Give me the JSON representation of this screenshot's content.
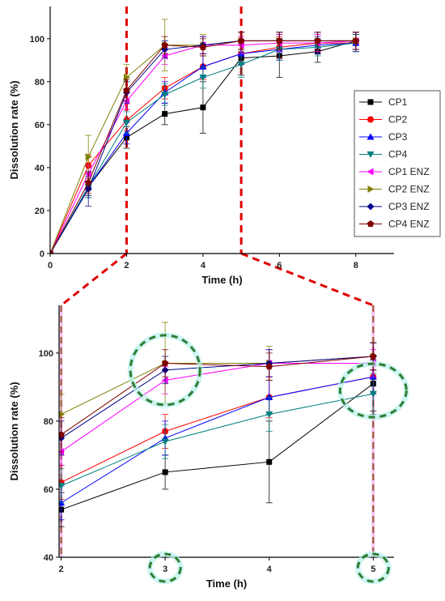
{
  "chart_data": [
    {
      "type": "line",
      "xlabel": "Time (h)",
      "ylabel": "Dissolution rate (%)",
      "xlim": [
        0,
        9
      ],
      "ylim": [
        0,
        115
      ],
      "xticks": [
        0,
        2,
        4,
        6,
        8
      ],
      "yticks": [
        0,
        20,
        40,
        60,
        80,
        100
      ],
      "legend": "right",
      "x": [
        0,
        1,
        2,
        3,
        4,
        5,
        6,
        7,
        8
      ],
      "series": [
        {
          "name": "CP1",
          "color": "#000000",
          "marker": "square",
          "values": [
            0,
            31,
            54,
            65,
            68,
            91,
            92,
            94,
            99
          ],
          "errors": [
            0,
            4,
            5,
            5,
            12,
            8,
            10,
            5,
            4
          ]
        },
        {
          "name": "CP2",
          "color": "#ff0000",
          "marker": "circle",
          "values": [
            0,
            41,
            62,
            77,
            87,
            93,
            96,
            98,
            98
          ],
          "errors": [
            0,
            5,
            5,
            5,
            6,
            5,
            5,
            4,
            4
          ]
        },
        {
          "name": "CP3",
          "color": "#0000ff",
          "marker": "triangle-up",
          "values": [
            0,
            31,
            56,
            75,
            87,
            93,
            95,
            97,
            98
          ],
          "errors": [
            0,
            5,
            5,
            5,
            5,
            5,
            5,
            4,
            4
          ]
        },
        {
          "name": "CP4",
          "color": "#008080",
          "marker": "triangle-down",
          "values": [
            0,
            31,
            61,
            74,
            82,
            88,
            95,
            96,
            98
          ],
          "errors": [
            0,
            5,
            5,
            5,
            5,
            6,
            5,
            4,
            4
          ]
        },
        {
          "name": "CP1 ENZ",
          "color": "#ff00ff",
          "marker": "triangle-left",
          "values": [
            0,
            37,
            71,
            92,
            97,
            97,
            98,
            98,
            99
          ],
          "errors": [
            0,
            4,
            4,
            4,
            4,
            4,
            4,
            4,
            4
          ]
        },
        {
          "name": "CP2 ENZ",
          "color": "#808000",
          "marker": "triangle-right",
          "values": [
            0,
            45,
            82,
            97,
            97,
            99,
            99,
            99,
            99
          ],
          "errors": [
            0,
            10,
            6,
            12,
            5,
            4,
            4,
            4,
            4
          ]
        },
        {
          "name": "CP3 ENZ",
          "color": "#00008b",
          "marker": "diamond",
          "values": [
            0,
            30,
            75,
            95,
            97,
            99,
            99,
            99,
            99
          ],
          "errors": [
            0,
            8,
            5,
            4,
            4,
            4,
            4,
            4,
            4
          ]
        },
        {
          "name": "CP4 ENZ",
          "color": "#800000",
          "marker": "pentagon",
          "values": [
            0,
            33,
            76,
            97,
            96,
            99,
            99,
            99,
            99
          ],
          "errors": [
            0,
            5,
            5,
            4,
            4,
            4,
            4,
            4,
            4
          ]
        }
      ]
    },
    {
      "type": "line",
      "xlabel": "Time (h)",
      "ylabel": "Dissolution rate (%)",
      "xlim": [
        1.98,
        5.2
      ],
      "ylim": [
        40,
        114
      ],
      "xticks": [
        2,
        3,
        4,
        5
      ],
      "yticks": [
        40,
        60,
        80,
        100
      ],
      "x": [
        2,
        3,
        4,
        5
      ],
      "series_ref": "same series as top panel, zoomed to 2–5 h"
    }
  ]
}
